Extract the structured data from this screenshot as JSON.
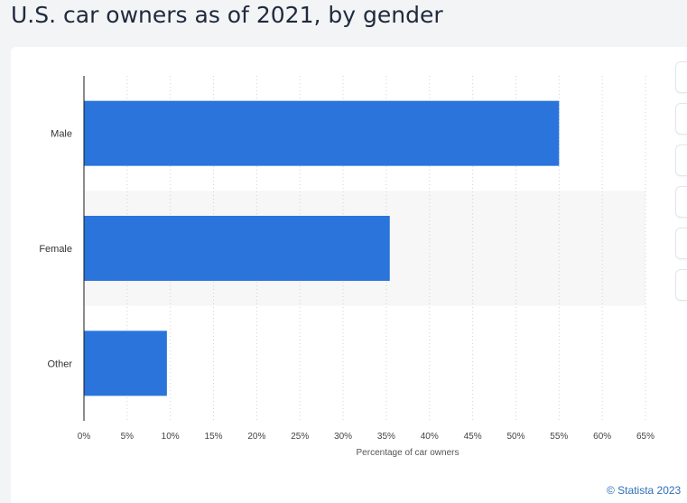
{
  "title": "U.S. car owners as of 2021, by gender",
  "credit": "© Statista 2023",
  "colors": {
    "bar": "#2a74dc",
    "band": "#f7f7f7",
    "grid": "#cfd3d8",
    "axis": "#1a1a1a",
    "text": "#333333"
  },
  "side_buttons": [
    "button-1",
    "button-2",
    "button-3",
    "button-4",
    "button-5",
    "button-6"
  ],
  "chart_data": {
    "type": "bar",
    "orientation": "horizontal",
    "categories": [
      "Male",
      "Female",
      "Other"
    ],
    "values": [
      55,
      35.4,
      9.6
    ],
    "xlabel": "Percentage of car owners",
    "ylabel": "",
    "xlim": [
      0,
      65
    ],
    "xticks": [
      "0%",
      "5%",
      "10%",
      "15%",
      "20%",
      "25%",
      "30%",
      "35%",
      "40%",
      "45%",
      "50%",
      "55%",
      "60%",
      "65%"
    ],
    "grid": true,
    "legend": "none"
  }
}
